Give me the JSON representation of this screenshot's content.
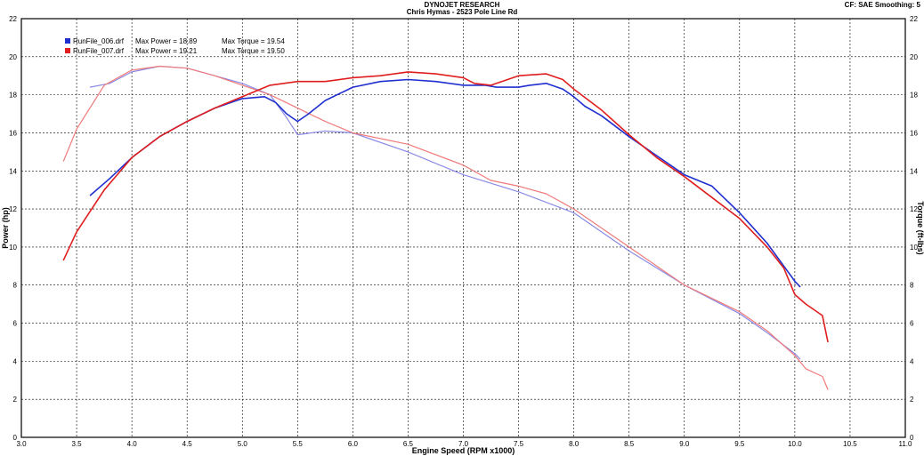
{
  "header": {
    "title": "DYNOJET RESEARCH",
    "subtitle": "Chris Hymas - 2523 Pole Line Rd",
    "settings": "CF: SAE  Smoothing: 5"
  },
  "colors": {
    "run1": "#1f2fcf",
    "run1_torque": "#8a8ae6",
    "run2": "#e01e1e",
    "run2_torque": "#f07a7a",
    "grid": "#000000"
  },
  "legend": [
    {
      "file": "RunFile_006.drf",
      "power_text": "Max Power = 18.89",
      "torque_text": "Max Torque = 19.54",
      "color": "#1f2fcf"
    },
    {
      "file": "RunFile_007.drf",
      "power_text": "Max Power = 19.21",
      "torque_text": "Max Torque = 19.50",
      "color": "#e01e1e"
    }
  ],
  "chart_data": {
    "type": "line",
    "xlabel": "Engine Speed (RPM x1000)",
    "ylabel": "Power (hp)",
    "y2label": "Torque (ft-lbs)",
    "xlim": [
      3.0,
      11.0
    ],
    "ylim": [
      0,
      22
    ],
    "y2lim": [
      0,
      22
    ],
    "x_ticks": [
      "3.0",
      "3.5",
      "4.0",
      "4.5",
      "5.0",
      "5.5",
      "6.0",
      "6.5",
      "7.0",
      "7.5",
      "8.0",
      "8.5",
      "9.0",
      "9.5",
      "10.0",
      "10.5",
      "11.0"
    ],
    "y_ticks": [
      "0",
      "2",
      "4",
      "6",
      "8",
      "10",
      "12",
      "14",
      "16",
      "18",
      "20",
      "22"
    ],
    "grid": true,
    "series": [
      {
        "name": "RunFile_006.drf",
        "measure": "power",
        "color": "#1f2fcf",
        "x": [
          3.62,
          3.8,
          4.0,
          4.25,
          4.5,
          4.75,
          5.0,
          5.2,
          5.3,
          5.4,
          5.5,
          5.6,
          5.75,
          6.0,
          6.25,
          6.5,
          6.75,
          7.0,
          7.2,
          7.3,
          7.5,
          7.6,
          7.75,
          7.9,
          8.0,
          8.1,
          8.25,
          8.5,
          8.75,
          9.0,
          9.25,
          9.5,
          9.75,
          9.9,
          10.0,
          10.05
        ],
        "y": [
          12.7,
          13.6,
          14.7,
          15.8,
          16.6,
          17.3,
          17.8,
          17.9,
          17.6,
          17.0,
          16.6,
          17.0,
          17.7,
          18.4,
          18.7,
          18.8,
          18.7,
          18.5,
          18.5,
          18.4,
          18.4,
          18.5,
          18.6,
          18.3,
          17.9,
          17.4,
          16.9,
          15.8,
          14.8,
          13.8,
          13.2,
          11.8,
          10.2,
          9.0,
          8.2,
          7.9
        ]
      },
      {
        "name": "RunFile_007.drf",
        "measure": "power",
        "color": "#e01e1e",
        "x": [
          3.38,
          3.5,
          3.75,
          4.0,
          4.25,
          4.5,
          4.75,
          5.0,
          5.25,
          5.5,
          5.75,
          6.0,
          6.25,
          6.5,
          6.75,
          7.0,
          7.1,
          7.25,
          7.4,
          7.5,
          7.75,
          7.9,
          8.0,
          8.25,
          8.5,
          8.75,
          9.0,
          9.25,
          9.5,
          9.75,
          9.9,
          10.0,
          10.1,
          10.25,
          10.3
        ],
        "y": [
          9.3,
          10.8,
          13.0,
          14.7,
          15.8,
          16.6,
          17.3,
          17.9,
          18.5,
          18.7,
          18.7,
          18.9,
          19.0,
          19.2,
          19.1,
          18.9,
          18.6,
          18.5,
          18.8,
          19.0,
          19.1,
          18.8,
          18.3,
          17.2,
          15.9,
          14.7,
          13.7,
          12.6,
          11.5,
          10.0,
          8.9,
          7.5,
          7.0,
          6.4,
          5.0
        ]
      },
      {
        "name": "RunFile_006.drf",
        "measure": "torque",
        "color": "#8a8ae6",
        "x": [
          3.62,
          3.8,
          4.0,
          4.25,
          4.5,
          4.75,
          5.0,
          5.25,
          5.4,
          5.5,
          5.75,
          6.0,
          6.5,
          7.0,
          7.5,
          8.0,
          8.5,
          9.0,
          9.5,
          9.75,
          10.0,
          10.05
        ],
        "y": [
          18.4,
          18.6,
          19.2,
          19.5,
          19.4,
          19.0,
          18.6,
          18.0,
          16.8,
          15.9,
          16.1,
          16.0,
          15.0,
          13.8,
          12.9,
          11.8,
          9.8,
          8.0,
          6.5,
          5.5,
          4.4,
          4.1
        ]
      },
      {
        "name": "RunFile_007.drf",
        "measure": "torque",
        "color": "#f07a7a",
        "x": [
          3.38,
          3.5,
          3.75,
          4.0,
          4.25,
          4.5,
          4.75,
          5.0,
          5.25,
          5.5,
          5.75,
          6.0,
          6.5,
          7.0,
          7.25,
          7.5,
          7.75,
          8.0,
          8.5,
          9.0,
          9.5,
          9.75,
          10.0,
          10.1,
          10.25,
          10.3
        ],
        "y": [
          14.5,
          16.2,
          18.5,
          19.3,
          19.5,
          19.4,
          19.0,
          18.5,
          18.0,
          17.3,
          16.6,
          16.0,
          15.4,
          14.3,
          13.5,
          13.2,
          12.8,
          12.0,
          10.0,
          8.0,
          6.6,
          5.6,
          4.3,
          3.6,
          3.2,
          2.5
        ]
      }
    ]
  }
}
